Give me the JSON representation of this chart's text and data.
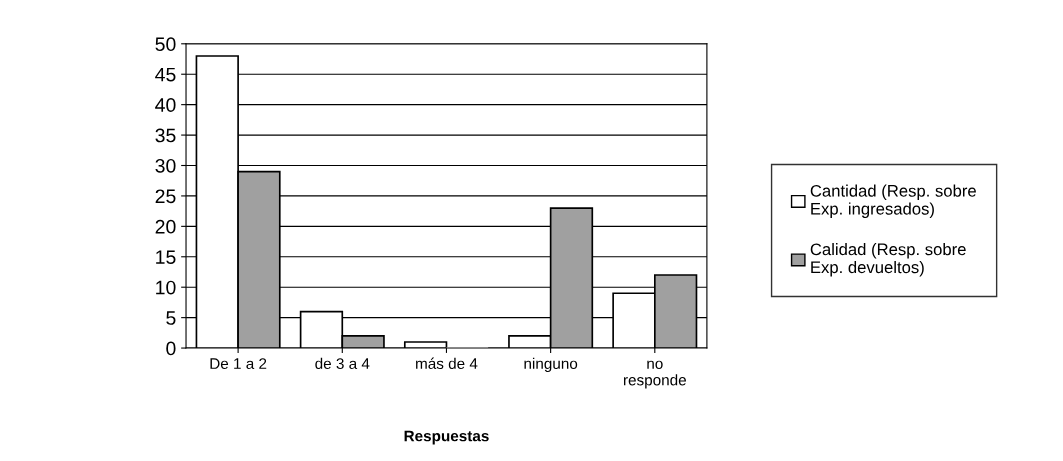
{
  "chart_data": {
    "type": "bar",
    "xlabel": "Respuestas",
    "categories": [
      "De 1 a 2",
      "de 3 a 4",
      "más de 4",
      "ninguno",
      "no\nresponde"
    ],
    "series": [
      {
        "name": "Cantidad (Resp. sobre\nExp. ingresados)",
        "color": "#ffffff",
        "values": [
          48,
          6,
          1,
          2,
          9
        ]
      },
      {
        "name": "Calidad (Resp. sobre\nExp. devueltos)",
        "color": "#a0a0a0",
        "values": [
          29,
          2,
          0,
          23,
          12
        ]
      }
    ],
    "ylim": [
      0,
      50
    ],
    "yticks": [
      0,
      5,
      10,
      15,
      20,
      25,
      30,
      35,
      40,
      45,
      50
    ],
    "grid": "y",
    "legend": "right"
  }
}
